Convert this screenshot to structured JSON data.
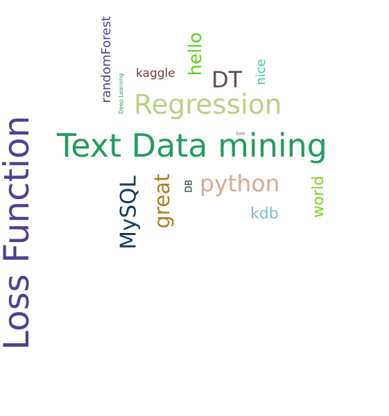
{
  "words": [
    {
      "text": "Loss Function",
      "color": "#533e96"
    },
    {
      "text": "Text Data mining",
      "color": "#1e9e5a"
    },
    {
      "text": "Regression",
      "color": "#bccf84"
    },
    {
      "text": "python",
      "color": "#d9a891"
    },
    {
      "text": "MySQL",
      "color": "#173b60"
    },
    {
      "text": "great",
      "color": "#b67a23"
    },
    {
      "text": "DT",
      "color": "#5e4a4a"
    },
    {
      "text": "hello",
      "color": "#5dd41f"
    },
    {
      "text": "randomForest",
      "color": "#533e96"
    },
    {
      "text": "kaggle",
      "color": "#7a3838"
    },
    {
      "text": "nice",
      "color": "#29d0a4"
    },
    {
      "text": "world",
      "color": "#7ed321"
    },
    {
      "text": "kdb",
      "color": "#7fc0cc"
    },
    {
      "text": "DB",
      "color": "#0e3a2c"
    },
    {
      "text": "Deep Learning",
      "color": "#1aa555"
    },
    {
      "text": "SVM",
      "color": "#8f4ea6"
    }
  ]
}
